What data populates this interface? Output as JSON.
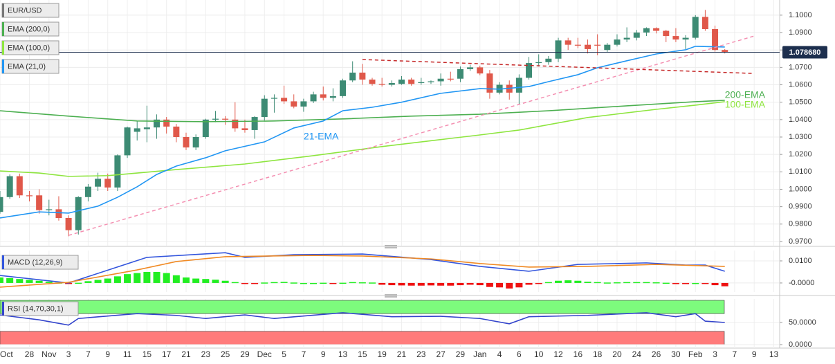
{
  "chart_data": [
    {
      "type": "candlestick",
      "title": "EUR/USD",
      "up_color": "#3d8b74",
      "down_color": "#e0584a",
      "open": [
        0.987,
        0.9955,
        1.0075,
        0.9965,
        0.9965,
        0.988,
        0.9885,
        0.9835,
        0.9765,
        0.9955,
        1.0015,
        1.006,
        1.001,
        1.0195,
        1.033,
        1.0345,
        1.0355,
        1.04,
        1.036,
        1.03,
        1.024,
        1.03,
        1.04,
        1.0405,
        1.04,
        1.035,
        1.034,
        1.0415,
        1.052,
        1.0525,
        1.0505,
        1.0475,
        1.0505,
        1.0545,
        1.0525,
        1.0535,
        1.0625,
        1.067,
        1.063,
        1.0605,
        1.06,
        1.0605,
        1.063,
        1.061,
        1.0615,
        1.062,
        1.0635,
        1.0635,
        1.069,
        1.07,
        1.0665,
        1.0555,
        1.06,
        1.0555,
        1.064,
        1.0725,
        1.073,
        1.075,
        1.0855,
        1.083,
        1.083,
        1.083,
        1.08,
        1.083,
        1.086,
        1.087,
        1.09,
        1.0925,
        1.091,
        1.088,
        1.086,
        1.087,
        1.099,
        1.092,
        1.08
      ],
      "high": [
        0.999,
        1.0085,
        1.009,
        0.999,
        1.0,
        0.994,
        0.996,
        0.985,
        0.996,
        1.003,
        1.0095,
        1.009,
        1.02,
        1.036,
        1.039,
        1.048,
        1.043,
        1.0415,
        1.0375,
        1.0325,
        1.0315,
        1.0405,
        1.045,
        1.042,
        1.05,
        1.04,
        1.042,
        1.054,
        1.0545,
        1.0595,
        1.0545,
        1.052,
        1.056,
        1.059,
        1.058,
        1.0635,
        1.0735,
        1.072,
        1.064,
        1.064,
        1.0625,
        1.065,
        1.064,
        1.064,
        1.0625,
        1.0665,
        1.0675,
        1.0705,
        1.0715,
        1.071,
        1.0685,
        1.0615,
        1.0625,
        1.066,
        1.076,
        1.0775,
        1.0765,
        1.087,
        1.087,
        1.087,
        1.086,
        1.089,
        1.084,
        1.089,
        1.093,
        1.0915,
        1.093,
        1.093,
        1.0915,
        1.0925,
        1.0885,
        1.1,
        1.103,
        1.094,
        1.0805
      ],
      "low": [
        0.986,
        0.9945,
        0.995,
        0.993,
        0.986,
        0.985,
        0.982,
        0.973,
        0.974,
        0.993,
        0.999,
        0.999,
        0.999,
        1.018,
        1.028,
        1.027,
        1.029,
        1.032,
        1.027,
        1.0225,
        1.0225,
        1.029,
        1.0385,
        1.037,
        1.033,
        1.0325,
        1.029,
        1.0395,
        1.044,
        1.049,
        1.0465,
        1.0445,
        1.0495,
        1.051,
        1.0505,
        1.0525,
        1.0615,
        1.06,
        1.0595,
        1.059,
        1.059,
        1.06,
        1.0595,
        1.06,
        1.0605,
        1.0595,
        1.062,
        1.0615,
        1.068,
        1.0655,
        1.052,
        1.0545,
        1.0515,
        1.0485,
        1.063,
        1.0705,
        1.0715,
        1.073,
        1.08,
        1.081,
        1.078,
        1.077,
        1.0785,
        1.082,
        1.0845,
        1.0855,
        1.088,
        1.0895,
        1.0845,
        1.0845,
        1.0805,
        1.086,
        1.091,
        1.079,
        1.078
      ],
      "close": [
        0.9955,
        1.0075,
        0.9965,
        0.996,
        0.988,
        0.9885,
        0.9835,
        0.9765,
        0.9955,
        1.0015,
        1.006,
        1.001,
        1.0195,
        1.0355,
        1.035,
        1.0355,
        1.04,
        1.036,
        1.03,
        1.024,
        1.03,
        1.04,
        1.0405,
        1.04,
        1.035,
        1.034,
        1.0415,
        1.052,
        1.0525,
        1.0505,
        1.0475,
        1.0505,
        1.0545,
        1.0525,
        1.0535,
        1.0625,
        1.067,
        1.063,
        1.0605,
        1.06,
        1.061,
        1.063,
        1.0605,
        1.0615,
        1.062,
        1.0635,
        1.063,
        1.069,
        1.07,
        1.0665,
        1.0555,
        1.06,
        1.0555,
        1.064,
        1.0725,
        1.073,
        1.075,
        1.0855,
        1.083,
        1.0825,
        1.0805,
        1.0825,
        1.083,
        1.086,
        1.087,
        1.09,
        1.0925,
        1.091,
        1.088,
        1.086,
        1.087,
        1.099,
        1.092,
        1.08,
        1.0786
      ],
      "series": [
        {
          "name": "EMA (200,0)",
          "color": "#4caf50",
          "x": [
            0,
            7,
            14,
            21,
            28,
            35,
            42,
            49,
            56,
            64,
            71,
            74
          ],
          "values": [
            1.0451,
            1.042,
            1.0392,
            1.0388,
            1.0392,
            1.0404,
            1.042,
            1.0431,
            1.0451,
            1.0479,
            1.0503,
            1.0511
          ]
        },
        {
          "name": "EMA (100,0)",
          "color": "#8ee53f",
          "x": [
            0,
            4,
            7,
            11,
            14,
            18,
            25,
            32,
            39,
            46,
            49,
            53,
            60,
            67,
            71,
            74
          ],
          "values": [
            1.0105,
            1.0093,
            1.0074,
            1.0078,
            1.0093,
            1.0113,
            1.0145,
            1.0193,
            1.0245,
            1.0292,
            1.0312,
            1.034,
            1.0412,
            1.0459,
            1.0483,
            1.0503
          ]
        },
        {
          "name": "EMA (21,0)",
          "color": "#2196f3",
          "x": [
            0,
            4,
            7,
            10,
            12,
            14,
            16,
            18,
            21,
            23,
            27,
            30,
            33,
            35,
            38,
            41,
            45,
            49,
            51,
            54,
            56,
            59,
            61,
            64,
            67,
            70,
            71,
            74
          ],
          "values": [
            0.9835,
            0.987,
            0.9863,
            0.9903,
            0.9954,
            1.0014,
            1.0085,
            1.0133,
            1.0181,
            1.0221,
            1.0272,
            1.0352,
            1.0392,
            1.0451,
            1.0471,
            1.05,
            1.0551,
            1.0578,
            1.0575,
            1.059,
            1.0618,
            1.0658,
            1.0698,
            1.0738,
            1.0777,
            1.0801,
            1.0821,
            1.0817
          ]
        }
      ],
      "lines": [
        {
          "color": "#f48fb1",
          "x": [
            7,
            77
          ],
          "values": [
            0.9735,
            1.088
          ]
        },
        {
          "color": "#c62828",
          "x": [
            37,
            77
          ],
          "values": [
            1.0745,
            1.0665
          ]
        }
      ],
      "annotations": [
        {
          "text": "21-EMA",
          "color": "#2196f3",
          "x": 31,
          "y": 1.03
        },
        {
          "text": "200-EMA",
          "color": "#4caf50",
          "x": 74,
          "y": 1.0539
        },
        {
          "text": "100-EMA",
          "color": "#8ee53f",
          "x": 74,
          "y": 1.0483
        }
      ],
      "last_price": {
        "value": 1.07868,
        "label": "1.078680"
      },
      "xlim": [
        0,
        79.6
      ],
      "xticks": [
        {
          "value": 0,
          "label": "Oct"
        },
        {
          "value": 3,
          "label": "28"
        },
        {
          "value": 5,
          "label": "Nov"
        },
        {
          "value": 7,
          "label": "3"
        },
        {
          "value": 9,
          "label": "7"
        },
        {
          "value": 11,
          "label": "9"
        },
        {
          "value": 13,
          "label": "11"
        },
        {
          "value": 15,
          "label": "15"
        },
        {
          "value": 17,
          "label": "17"
        },
        {
          "value": 19,
          "label": "21"
        },
        {
          "value": 21,
          "label": "23"
        },
        {
          "value": 23,
          "label": "25"
        },
        {
          "value": 25,
          "label": "29"
        },
        {
          "value": 27,
          "label": "Dec"
        },
        {
          "value": 29,
          "label": "5"
        },
        {
          "value": 31,
          "label": "7"
        },
        {
          "value": 33,
          "label": "9"
        },
        {
          "value": 35,
          "label": "13"
        },
        {
          "value": 37,
          "label": "15"
        },
        {
          "value": 39,
          "label": "19"
        },
        {
          "value": 41,
          "label": "21"
        },
        {
          "value": 43,
          "label": "23"
        },
        {
          "value": 45,
          "label": "27"
        },
        {
          "value": 47,
          "label": "29"
        },
        {
          "value": 49,
          "label": "Jan"
        },
        {
          "value": 51,
          "label": "4"
        },
        {
          "value": 53,
          "label": "6"
        },
        {
          "value": 55,
          "label": "10"
        },
        {
          "value": 57,
          "label": "12"
        },
        {
          "value": 59,
          "label": "16"
        },
        {
          "value": 61,
          "label": "18"
        },
        {
          "value": 63,
          "label": "20"
        },
        {
          "value": 65,
          "label": "24"
        },
        {
          "value": 67,
          "label": "26"
        },
        {
          "value": 69,
          "label": "30"
        },
        {
          "value": 71,
          "label": "Feb"
        },
        {
          "value": 73,
          "label": "3"
        },
        {
          "value": 75,
          "label": "7"
        },
        {
          "value": 77,
          "label": "9"
        },
        {
          "value": 79,
          "label": "13"
        }
      ],
      "ylim": [
        0.9676,
        1.1087
      ],
      "yticks": [
        {
          "value": 1.1,
          "label": "1.1000"
        },
        {
          "value": 1.09,
          "label": "1.0900"
        },
        {
          "value": 1.08,
          "label": "1.0800"
        },
        {
          "value": 1.07,
          "label": "1.0700"
        },
        {
          "value": 1.06,
          "label": "1.0600"
        },
        {
          "value": 1.05,
          "label": "1.0500"
        },
        {
          "value": 1.04,
          "label": "1.0400"
        },
        {
          "value": 1.03,
          "label": "1.0300"
        },
        {
          "value": 1.02,
          "label": "1.0200"
        },
        {
          "value": 1.01,
          "label": "1.0100"
        },
        {
          "value": 1.0,
          "label": "1.0000"
        },
        {
          "value": 0.99,
          "label": "0.9900"
        },
        {
          "value": 0.98,
          "label": "0.9800"
        },
        {
          "value": 0.97,
          "label": "0.9700"
        }
      ],
      "grid": true
    },
    {
      "type": "macd",
      "title": "MACD (12,26,9)",
      "histogram": [
        0.0025,
        0.0022,
        0.0018,
        0.0014,
        0.001,
        0.0006,
        0.0002,
        -0.0003,
        0.0001,
        0.0008,
        0.0014,
        0.002,
        0.003,
        0.004,
        0.0045,
        0.005,
        0.005,
        0.0045,
        0.0035,
        0.0025,
        0.002,
        0.0018,
        0.0015,
        0.001,
        0.0004,
        -0.0002,
        -0.0002,
        0.0002,
        0.0004,
        0.0005,
        0.0002,
        0.0,
        0.0,
        0.0001,
        -0.0001,
        0.0001,
        0.0004,
        0.0003,
        0.0002,
        -0.0008,
        -0.001,
        -0.0011,
        -0.0012,
        -0.0012,
        -0.0011,
        -0.0012,
        -0.0012,
        -0.001,
        -0.0008,
        -0.001,
        -0.0018,
        -0.002,
        -0.0025,
        -0.002,
        -0.0008,
        -0.0002,
        0.0004,
        0.001,
        0.0012,
        0.001,
        0.0006,
        0.0004,
        0.0002,
        0.0003,
        0.0004,
        0.0004,
        0.0004,
        0.0003,
        0.0001,
        -0.0005,
        -0.0005,
        0.0,
        -0.0004,
        -0.001,
        -0.0015
      ],
      "up_color": "#22ee22",
      "down_color": "#ee1111",
      "series": [
        {
          "color": "#3355dd",
          "x": [
            0,
            7,
            15,
            23,
            25,
            30,
            37,
            44,
            49,
            54,
            59,
            66,
            70,
            72,
            74
          ],
          "values": [
            0.0034,
            0.0,
            0.0116,
            0.0137,
            0.0116,
            0.0128,
            0.0131,
            0.0106,
            0.0075,
            0.0053,
            0.0084,
            0.0091,
            0.0081,
            0.0081,
            0.0053
          ]
        },
        {
          "color": "#f08a24",
          "x": [
            0,
            7,
            14,
            18,
            23,
            32,
            37,
            44,
            49,
            54,
            60,
            67,
            74
          ],
          "values": [
            -0.0019,
            0.0003,
            0.0059,
            0.0097,
            0.0119,
            0.0125,
            0.0122,
            0.0109,
            0.0088,
            0.0072,
            0.0075,
            0.0084,
            0.0075
          ]
        }
      ],
      "ylim": [
        -0.0041,
        0.0147
      ],
      "yticks": [
        {
          "value": 0.01,
          "label": "0.0100"
        },
        {
          "value": 0,
          "label": "-0.0000"
        }
      ]
    },
    {
      "type": "rsi",
      "title": "RSI (14,70,30,1)",
      "bands": [
        {
          "range": [
            70,
            100
          ],
          "color": "#7dfb7d"
        },
        {
          "range": [
            0,
            30
          ],
          "color": "#ff7b7b"
        }
      ],
      "series": [
        {
          "color": "#3344cc",
          "x": [
            0,
            4,
            7,
            8,
            14,
            18,
            21,
            25,
            28,
            35,
            40,
            45,
            49,
            52,
            54,
            60,
            66,
            69,
            71,
            72,
            74
          ],
          "values": [
            67,
            56,
            44,
            59,
            70,
            66,
            59,
            67,
            59,
            72,
            63,
            64,
            59,
            47,
            63,
            66,
            72,
            63,
            70,
            53,
            50
          ]
        }
      ],
      "ylim": [
        -7.8,
        103.1
      ],
      "yticks": [
        {
          "value": 50,
          "label": "50.0000"
        },
        {
          "value": 0,
          "label": "0.0000"
        }
      ]
    }
  ]
}
